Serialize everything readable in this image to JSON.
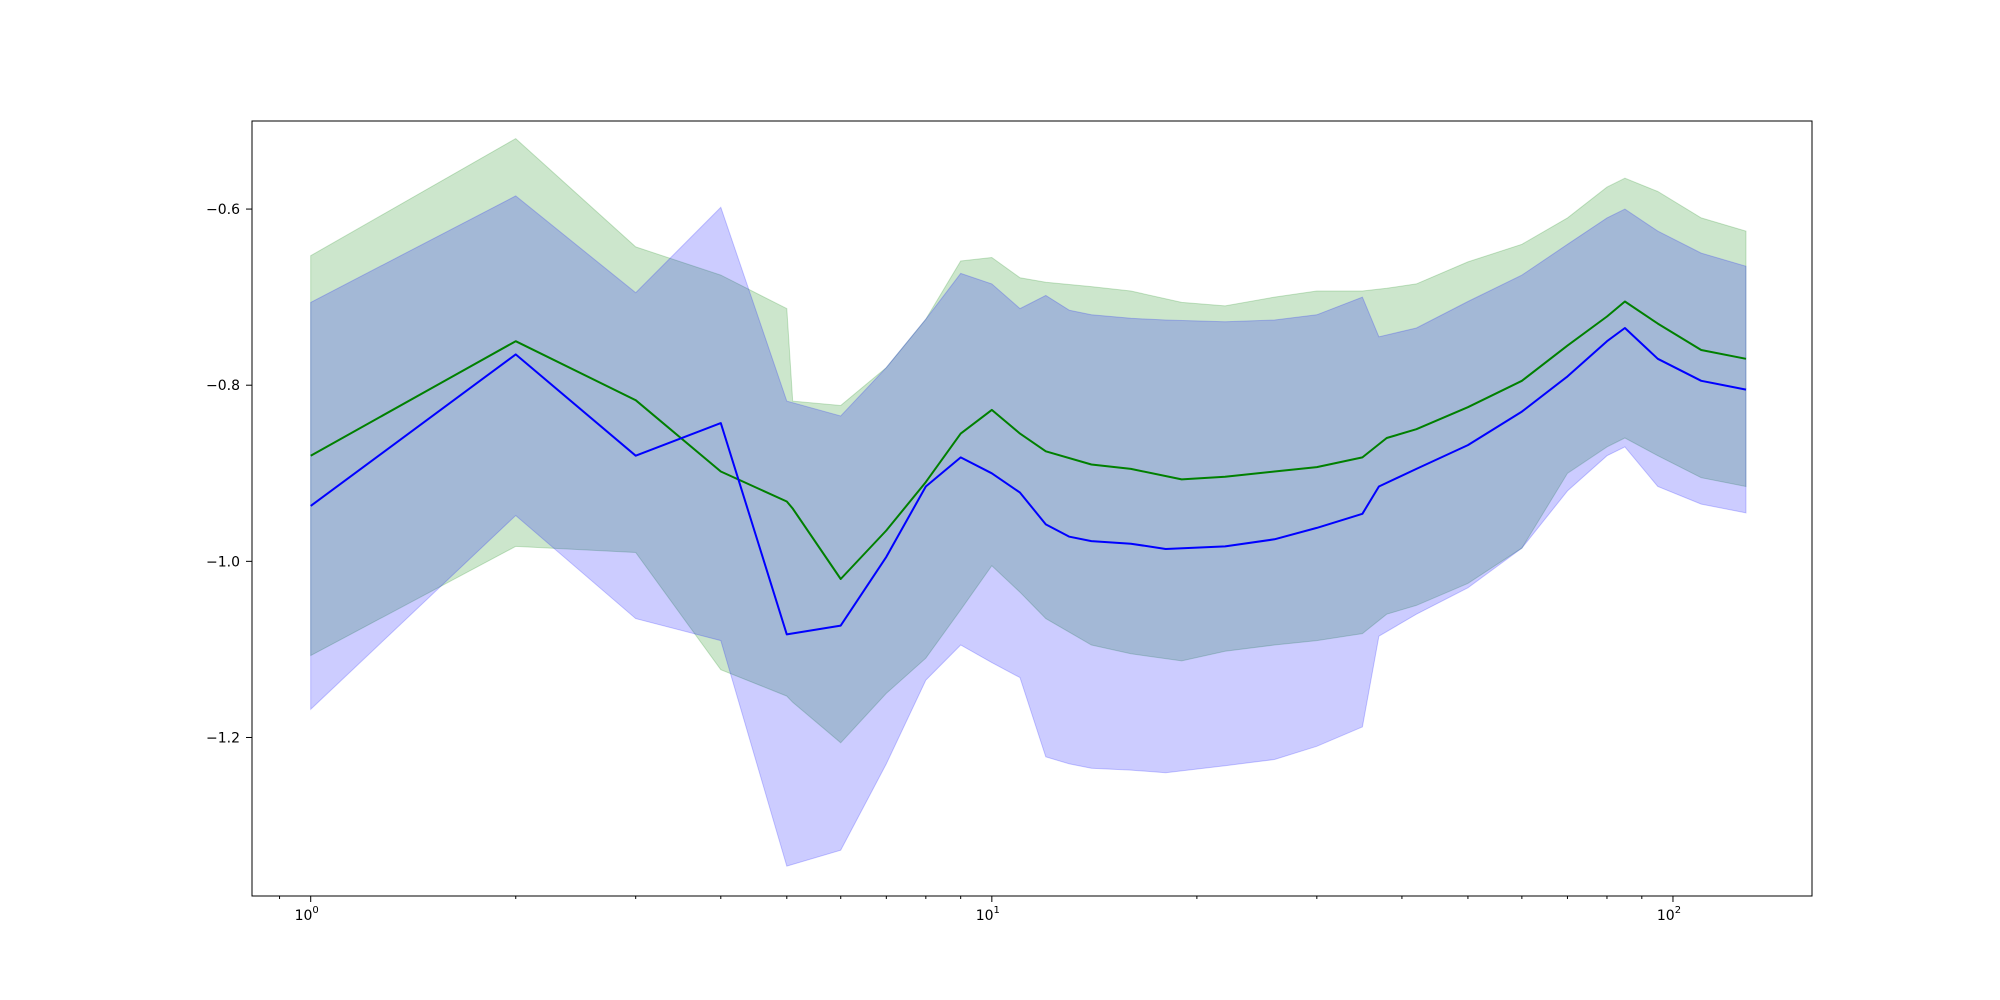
{
  "chart_data": {
    "type": "line",
    "xscale": "log",
    "xlim": [
      0.82,
      160
    ],
    "ylim": [
      -1.38,
      -0.5
    ],
    "grid": false,
    "legend": "none",
    "x_ticks": [
      {
        "value": 1,
        "base": "10",
        "exp": "0"
      },
      {
        "value": 10,
        "base": "10",
        "exp": "1"
      },
      {
        "value": 100,
        "base": "10",
        "exp": "2"
      }
    ],
    "y_ticks": [
      {
        "value": -0.6,
        "label": "−0.6"
      },
      {
        "value": -0.8,
        "label": "−0.8"
      },
      {
        "value": -1.0,
        "label": "−1.0"
      },
      {
        "value": -1.2,
        "label": "−1.2"
      }
    ],
    "series": [
      {
        "color": "#008000",
        "band_fill": "rgba(0,128,0,0.2)",
        "points": [
          [
            1,
            -0.88,
            -0.653,
            -1.107
          ],
          [
            2,
            -0.75,
            -0.52,
            -0.983
          ],
          [
            3,
            -0.817,
            -0.643,
            -0.99
          ],
          [
            4,
            -0.898,
            -0.675,
            -1.123
          ],
          [
            5,
            -0.932,
            -0.713,
            -1.153
          ],
          [
            5.1,
            -0.94,
            -0.818,
            -1.16
          ],
          [
            6,
            -1.02,
            -0.823,
            -1.206
          ],
          [
            7,
            -0.965,
            -0.78,
            -1.15
          ],
          [
            8,
            -0.91,
            -0.725,
            -1.11
          ],
          [
            9,
            -0.855,
            -0.659,
            -1.055
          ],
          [
            10,
            -0.828,
            -0.655,
            -1.005
          ],
          [
            11,
            -0.855,
            -0.678,
            -1.035
          ],
          [
            12,
            -0.875,
            -0.683,
            -1.065
          ],
          [
            14,
            -0.89,
            -0.688,
            -1.095
          ],
          [
            16,
            -0.895,
            -0.693,
            -1.105
          ],
          [
            19,
            -0.907,
            -0.706,
            -1.113
          ],
          [
            22,
            -0.904,
            -0.71,
            -1.102
          ],
          [
            26,
            -0.898,
            -0.7,
            -1.095
          ],
          [
            30,
            -0.893,
            -0.693,
            -1.09
          ],
          [
            35,
            -0.882,
            -0.693,
            -1.082
          ],
          [
            38,
            -0.86,
            -0.69,
            -1.06
          ],
          [
            42,
            -0.85,
            -0.685,
            -1.05
          ],
          [
            50,
            -0.825,
            -0.66,
            -1.025
          ],
          [
            60,
            -0.795,
            -0.64,
            -0.985
          ],
          [
            70,
            -0.755,
            -0.61,
            -0.9
          ],
          [
            80,
            -0.722,
            -0.575,
            -0.87
          ],
          [
            85,
            -0.705,
            -0.565,
            -0.86
          ],
          [
            95,
            -0.73,
            -0.58,
            -0.88
          ],
          [
            110,
            -0.76,
            -0.61,
            -0.905
          ],
          [
            128,
            -0.77,
            -0.625,
            -0.915
          ]
        ]
      },
      {
        "color": "#0000ff",
        "band_fill": "rgba(0,0,255,0.2)",
        "points": [
          [
            1,
            -0.937,
            -0.706,
            -1.168
          ],
          [
            2,
            -0.765,
            -0.585,
            -0.948
          ],
          [
            3,
            -0.88,
            -0.695,
            -1.065
          ],
          [
            4,
            -0.843,
            -0.598,
            -1.09
          ],
          [
            5,
            -1.083,
            -0.818,
            -1.346
          ],
          [
            6,
            -1.073,
            -0.835,
            -1.328
          ],
          [
            7,
            -0.995,
            -0.78,
            -1.23
          ],
          [
            8,
            -0.915,
            -0.725,
            -1.135
          ],
          [
            9,
            -0.882,
            -0.673,
            -1.095
          ],
          [
            10,
            -0.9,
            -0.685,
            -1.115
          ],
          [
            11,
            -0.922,
            -0.713,
            -1.132
          ],
          [
            12,
            -0.958,
            -0.698,
            -1.222
          ],
          [
            13,
            -0.972,
            -0.715,
            -1.23
          ],
          [
            14,
            -0.977,
            -0.72,
            -1.235
          ],
          [
            16,
            -0.98,
            -0.724,
            -1.237
          ],
          [
            18,
            -0.986,
            -0.726,
            -1.24
          ],
          [
            22,
            -0.983,
            -0.728,
            -1.232
          ],
          [
            26,
            -0.975,
            -0.726,
            -1.225
          ],
          [
            30,
            -0.962,
            -0.72,
            -1.21
          ],
          [
            35,
            -0.946,
            -0.7,
            -1.188
          ],
          [
            37,
            -0.915,
            -0.745,
            -1.085
          ],
          [
            42,
            -0.895,
            -0.735,
            -1.06
          ],
          [
            50,
            -0.868,
            -0.705,
            -1.03
          ],
          [
            60,
            -0.83,
            -0.675,
            -0.985
          ],
          [
            70,
            -0.79,
            -0.64,
            -0.92
          ],
          [
            80,
            -0.75,
            -0.61,
            -0.88
          ],
          [
            85,
            -0.735,
            -0.6,
            -0.87
          ],
          [
            95,
            -0.77,
            -0.625,
            -0.915
          ],
          [
            110,
            -0.795,
            -0.65,
            -0.935
          ],
          [
            128,
            -0.805,
            -0.665,
            -0.945
          ]
        ]
      }
    ]
  }
}
